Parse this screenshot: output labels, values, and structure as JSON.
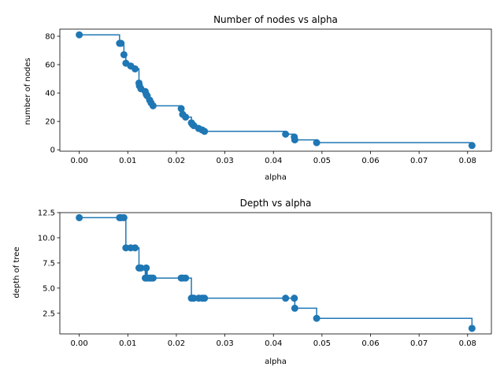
{
  "chart_data": [
    {
      "type": "line",
      "drawstyle": "steps-post",
      "marker": "circle",
      "title": "Number of nodes vs alpha",
      "xlabel": "alpha",
      "ylabel": "number of nodes",
      "xlim": [
        -0.004,
        0.0849
      ],
      "ylim": [
        -1,
        85
      ],
      "xticks": [
        "0.00",
        "0.01",
        "0.02",
        "0.03",
        "0.04",
        "0.05",
        "0.06",
        "0.07",
        "0.08"
      ],
      "xtick_values": [
        0,
        0.01,
        0.02,
        0.03,
        0.04,
        0.05,
        0.06,
        0.07,
        0.08
      ],
      "yticks": [
        "0",
        "20",
        "40",
        "60",
        "80"
      ],
      "ytick_values": [
        0,
        20,
        40,
        60,
        80
      ],
      "grid": false,
      "color": "#1f77b4",
      "x": [
        0.0,
        0.0083,
        0.0086,
        0.0092,
        0.0096,
        0.0106,
        0.0115,
        0.0123,
        0.0124,
        0.0127,
        0.0136,
        0.0138,
        0.014,
        0.0145,
        0.0148,
        0.0152,
        0.021,
        0.0213,
        0.0219,
        0.0231,
        0.0233,
        0.0236,
        0.0246,
        0.0253,
        0.0258,
        0.0425,
        0.0443,
        0.0444,
        0.0489,
        0.0809
      ],
      "y": [
        81,
        75,
        75,
        67,
        61,
        59,
        57,
        47,
        45,
        43,
        41,
        39,
        38,
        35,
        33,
        31,
        29,
        25,
        23,
        19,
        18,
        17,
        15,
        14,
        13,
        11,
        9,
        7,
        5,
        3
      ]
    },
    {
      "type": "line",
      "drawstyle": "steps-post",
      "marker": "circle",
      "title": "Depth vs alpha",
      "xlabel": "alpha",
      "ylabel": "depth of tree",
      "xlim": [
        -0.004,
        0.0849
      ],
      "ylim": [
        0.45,
        12.5
      ],
      "xticks": [
        "0.00",
        "0.01",
        "0.02",
        "0.03",
        "0.04",
        "0.05",
        "0.06",
        "0.07",
        "0.08"
      ],
      "xtick_values": [
        0,
        0.01,
        0.02,
        0.03,
        0.04,
        0.05,
        0.06,
        0.07,
        0.08
      ],
      "yticks": [
        "2.5",
        "5.0",
        "7.5",
        "10.0",
        "12.5"
      ],
      "ytick_values": [
        2.5,
        5.0,
        7.5,
        10.0,
        12.5
      ],
      "grid": false,
      "color": "#1f77b4",
      "x": [
        0.0,
        0.0083,
        0.0086,
        0.0092,
        0.0096,
        0.0106,
        0.0115,
        0.0123,
        0.0124,
        0.0127,
        0.0136,
        0.0138,
        0.014,
        0.0145,
        0.0148,
        0.0152,
        0.021,
        0.0213,
        0.0219,
        0.0231,
        0.0233,
        0.0236,
        0.0246,
        0.0253,
        0.0258,
        0.0425,
        0.0443,
        0.0444,
        0.0489,
        0.0809
      ],
      "y": [
        12,
        12,
        12,
        12,
        9,
        9,
        9,
        7,
        7,
        7,
        6,
        7,
        6,
        6,
        6,
        6,
        6,
        6,
        6,
        4,
        4,
        4,
        4,
        4,
        4,
        4,
        4,
        3,
        2,
        1
      ]
    }
  ]
}
